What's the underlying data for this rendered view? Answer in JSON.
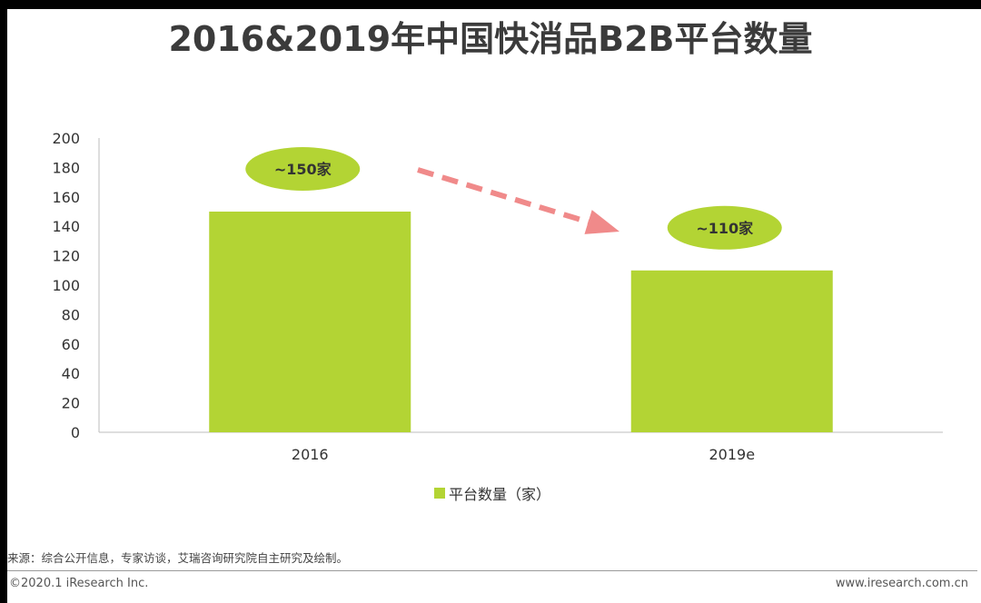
{
  "title": "2016&2019年中国快消品B2B平台数量",
  "chart_data": {
    "type": "bar",
    "title": "2016&2019年中国快消品B2B平台数量",
    "categories": [
      "2016",
      "2019e"
    ],
    "series": [
      {
        "name": "平台数量（家）",
        "values": [
          150,
          110
        ]
      }
    ],
    "data_labels": [
      "~150家",
      "~110家"
    ],
    "y_ticks": [
      "0",
      "20",
      "40",
      "60",
      "80",
      "100",
      "120",
      "140",
      "160",
      "180",
      "200"
    ],
    "ylim": [
      0,
      200
    ],
    "xlabel": "",
    "ylabel": "",
    "grid": false,
    "legend": "bottom",
    "colors": {
      "bar": "#b3d434",
      "label_ellipse": "#b3d434",
      "arrow": "#f08a8a"
    },
    "annotation": "decreasing-trend-arrow"
  },
  "legend": {
    "label": "平台数量（家）"
  },
  "footer": {
    "source": "来源：综合公开信息，专家访谈，艾瑞咨询研究院自主研究及绘制。",
    "copyright": "©2020.1 iResearch Inc.",
    "website": "www.iresearch.com.cn"
  }
}
